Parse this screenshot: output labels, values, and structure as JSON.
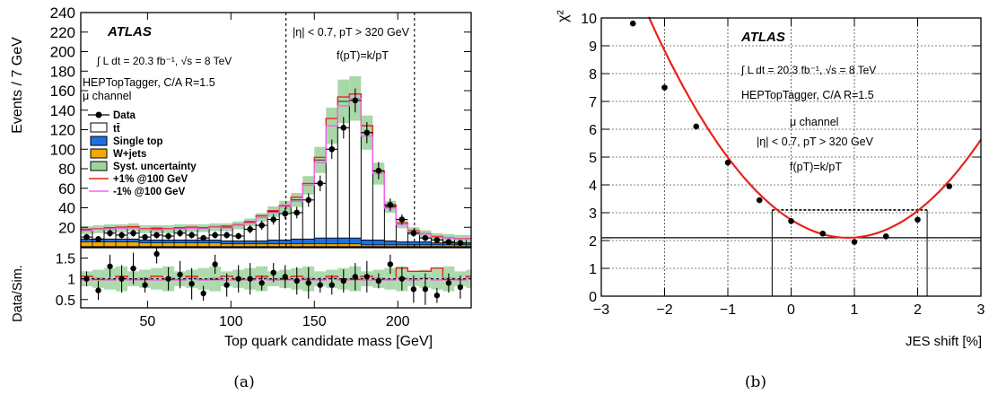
{
  "captions": {
    "a": "(a)",
    "b": "(b)"
  },
  "chart_data": [
    {
      "type": "bar",
      "panel": "a",
      "xlabel": "Top quark candidate mass [GeV]",
      "ylabel": "Events / 7 GeV",
      "ratio_ylabel": "Data/Sim.",
      "xlim": [
        10,
        244
      ],
      "ylim": [
        0,
        240
      ],
      "ratio_ylim": [
        0.3,
        1.75
      ],
      "x_ticks": [
        "50",
        "100",
        "150",
        "200"
      ],
      "y_ticks": [
        "20",
        "40",
        "60",
        "80",
        "100",
        "120",
        "140",
        "160",
        "180",
        "200",
        "220",
        "240"
      ],
      "ratio_ticks": [
        "0.5",
        "1",
        "1.5"
      ],
      "vlines": [
        133,
        210
      ],
      "annotations": {
        "atlas": "ATLAS",
        "lumi": "∫ L dt = 20.3 fb⁻¹, √s = 8 TeV",
        "tagger": "HEPTopTagger, C/A R=1.5",
        "channel": "μ channel",
        "cut": "|η| < 0.7,   pT > 320 GeV",
        "func": "f(pT)=k/pT"
      },
      "legend": {
        "data": "Data",
        "ttbar": "tt̄",
        "single_top": "Single top",
        "wjets": "W+jets",
        "syst": "Syst. uncertainty",
        "plus1": "+1% @100 GeV",
        "minus1": "-1% @100 GeV"
      },
      "colors": {
        "ttbar": "#ffffff",
        "single_top": "#1f6fe0",
        "wjets": "#f2a800",
        "syst": "#9fd49f",
        "plus1": "#e8231a",
        "minus1": "#ee66ee"
      },
      "bin_centers": [
        13.5,
        20.5,
        27.5,
        34.5,
        41.5,
        48.5,
        55.5,
        62.5,
        69.5,
        76.5,
        83.5,
        90.5,
        97.5,
        104.5,
        111.5,
        118.5,
        125.5,
        132.5,
        139.5,
        146.5,
        153.5,
        160.5,
        167.5,
        174.5,
        181.5,
        188.5,
        195.5,
        202.5,
        209.5,
        216.5,
        223.5,
        230.5,
        237.5,
        244.5
      ],
      "series": [
        {
          "name": "Data",
          "values": [
            10,
            8,
            14,
            12,
            14,
            10,
            12,
            11,
            14,
            12,
            9,
            12,
            12,
            11,
            18,
            22,
            28,
            34,
            35,
            48,
            65,
            100,
            122,
            150,
            117,
            78,
            43,
            28,
            14,
            9,
            7,
            5,
            4,
            8
          ]
        },
        {
          "name": "tt̄",
          "values": [
            9,
            10,
            11,
            11,
            12,
            11,
            11,
            11,
            12,
            12,
            12,
            13,
            14,
            16,
            19,
            24,
            29,
            34,
            40,
            55,
            80,
            115,
            140,
            143,
            110,
            68,
            35,
            18,
            11,
            8,
            6,
            5,
            4,
            4
          ]
        },
        {
          "name": "Single top",
          "values": [
            3,
            3,
            3,
            3,
            3,
            3,
            3,
            3,
            3,
            3,
            3,
            3,
            3,
            3,
            3,
            3,
            4,
            4,
            5,
            5,
            6,
            6,
            6,
            6,
            5,
            5,
            4,
            3,
            3,
            3,
            2,
            2,
            2,
            2
          ]
        },
        {
          "name": "W+jets",
          "values": [
            5,
            5,
            5,
            5,
            5,
            4,
            4,
            4,
            4,
            4,
            4,
            4,
            3,
            3,
            3,
            3,
            3,
            3,
            3,
            3,
            3,
            3,
            3,
            3,
            2,
            2,
            2,
            2,
            2,
            2,
            2,
            2,
            2,
            2
          ]
        }
      ],
      "ratio_values": [
        1.0,
        0.72,
        1.3,
        1.0,
        1.25,
        0.85,
        1.6,
        1.0,
        1.1,
        0.88,
        0.65,
        1.35,
        0.85,
        1.0,
        1.0,
        0.9,
        1.15,
        1.05,
        0.95,
        0.9,
        0.85,
        0.85,
        0.95,
        1.05,
        1.05,
        0.95,
        1.35,
        1.0,
        0.75,
        0.75,
        0.6,
        0.9,
        0.8,
        1.5
      ]
    },
    {
      "type": "scatter",
      "panel": "b",
      "xlabel": "JES shift [%]",
      "ylabel": "χ²",
      "xlim": [
        -3,
        3
      ],
      "ylim": [
        0,
        10
      ],
      "grid": true,
      "x_ticks": [
        "−3",
        "−2",
        "−1",
        "0",
        "1",
        "2",
        "3"
      ],
      "y_ticks": [
        "0",
        "1",
        "2",
        "3",
        "4",
        "5",
        "6",
        "7",
        "8",
        "9",
        "10"
      ],
      "annotations": {
        "atlas": "ATLAS",
        "lumi": "∫ L dt = 20.3 fb⁻¹, √s = 8 TeV",
        "tagger": "HEPTopTagger, C/A R=1.5",
        "channel": "μ channel",
        "cut": "|η| < 0.7,   pT > 320 GeV",
        "func": "f(pT)=k/pT"
      },
      "colors": {
        "fit": "#e8231a",
        "points": "#000000"
      },
      "points": {
        "x": [
          -2.5,
          -2.0,
          -1.5,
          -1.0,
          -0.5,
          0.0,
          0.5,
          1.0,
          1.5,
          2.0,
          2.5
        ],
        "y": [
          9.8,
          7.5,
          6.1,
          4.8,
          3.45,
          2.7,
          2.25,
          1.95,
          2.15,
          2.75,
          3.95
        ]
      },
      "fit": {
        "a": 0.8,
        "min_x": 0.9,
        "min_y": 2.1
      },
      "min_line_y": 2.1,
      "plus1_line_y": 3.1,
      "interval": [
        -0.3,
        2.15
      ]
    }
  ]
}
